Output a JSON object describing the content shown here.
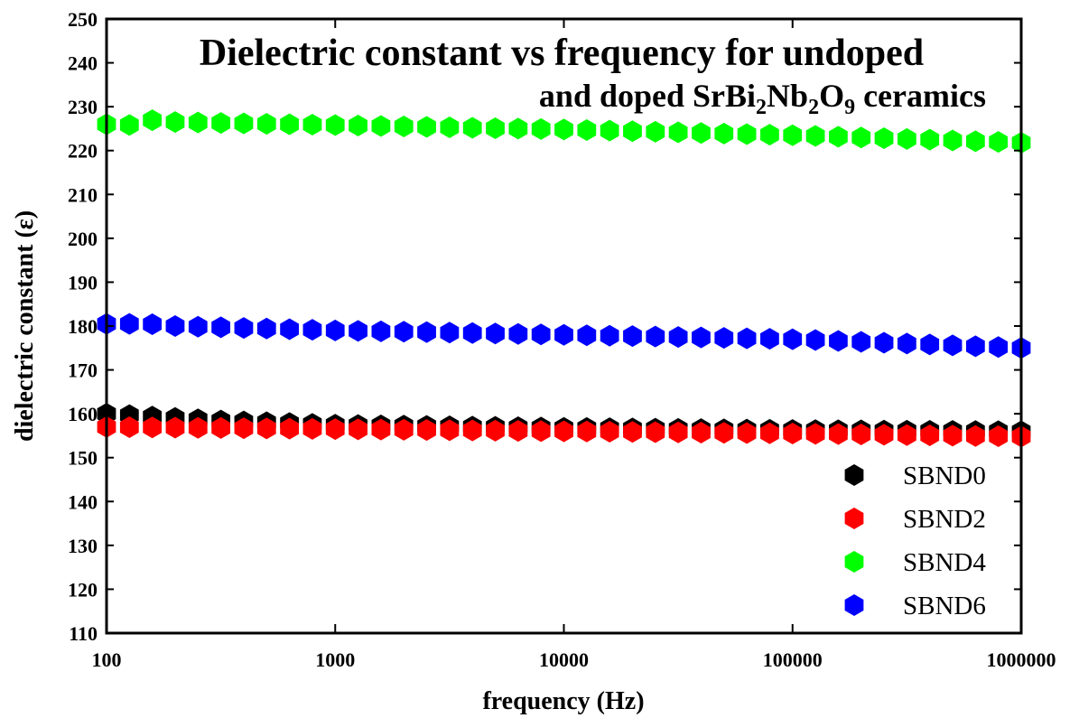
{
  "chart_data": {
    "type": "scatter",
    "title_line1": "Dielectric constant vs frequency for undoped",
    "title_line2_prefix": "and doped SrBi",
    "title_sub1": "2",
    "title_mid1": "Nb",
    "title_sub2": "2",
    "title_mid2": "O",
    "title_sub3": "9",
    "title_suffix": " ceramics",
    "xlabel": "frequency (Hz)",
    "ylabel": "dielectric constant (ε)",
    "xscale": "log",
    "xlim": [
      100,
      1000000
    ],
    "ylim": [
      110,
      250
    ],
    "xticks": [
      "100",
      "1000",
      "10000",
      "100000",
      "1000000"
    ],
    "yticks": [
      "110",
      "120",
      "130",
      "140",
      "150",
      "160",
      "170",
      "180",
      "190",
      "200",
      "210",
      "220",
      "230",
      "240",
      "250"
    ],
    "legend_position": "bottom-right",
    "grid": false,
    "series": [
      {
        "name": "SBND0",
        "color": "#000000",
        "marker": "hexagon",
        "x": [
          100,
          300,
          1000,
          10000,
          100000,
          1000000
        ],
        "y": [
          160,
          158.5,
          157.5,
          156.8,
          156.3,
          156
        ]
      },
      {
        "name": "SBND2",
        "color": "#ff0000",
        "marker": "hexagon",
        "x": [
          100,
          1000,
          10000,
          100000,
          1000000
        ],
        "y": [
          157,
          156.5,
          156,
          155.5,
          154.8
        ]
      },
      {
        "name": "SBND4",
        "color": "#00ff00",
        "marker": "hexagon",
        "x": [
          100,
          120,
          150,
          200,
          1000,
          10000,
          100000,
          1000000
        ],
        "y": [
          226,
          225.5,
          227,
          226.5,
          225.8,
          224.8,
          223.5,
          221.8
        ]
      },
      {
        "name": "SBND6",
        "color": "#0000ff",
        "marker": "hexagon",
        "x": [
          100,
          150,
          200,
          1000,
          10000,
          100000,
          1000000
        ],
        "y": [
          180.5,
          180.5,
          180,
          179,
          178,
          177,
          175
        ]
      }
    ]
  }
}
